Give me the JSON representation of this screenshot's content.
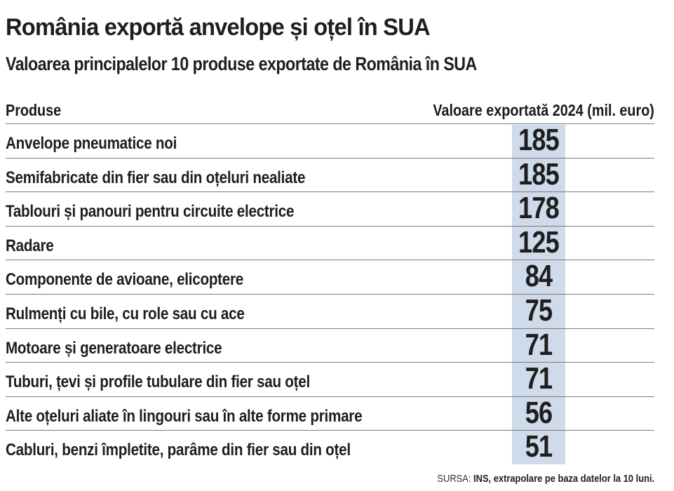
{
  "title": "România exportă anvelope și oțel în SUA",
  "subtitle": "Valoarea principalelor 10 produse exportate de România în SUA",
  "chart_data": {
    "type": "table",
    "columns": [
      "Produse",
      "Valoare exportată 2024 (mil. euro)"
    ],
    "rows": [
      {
        "product": "Anvelope pneumatice noi",
        "value": 185
      },
      {
        "product": "Semifabricate din fier sau din oțeluri nealiate",
        "value": 185
      },
      {
        "product": "Tablouri și panouri pentru circuite electrice",
        "value": 178
      },
      {
        "product": "Radare",
        "value": 125
      },
      {
        "product": "Componente de avioane, elicoptere",
        "value": 84
      },
      {
        "product": "Rulmenți cu bile, cu role sau cu ace",
        "value": 75
      },
      {
        "product": "Motoare și generatoare electrice",
        "value": 71
      },
      {
        "product": "Tuburi, țevi și profile tubulare din fier sau oțel",
        "value": 71
      },
      {
        "product": "Alte oțeluri aliate în lingouri sau în alte forme primare",
        "value": 56
      },
      {
        "product": "Cabluri, benzi împletite, parâme din fier sau din oțel",
        "value": 51
      }
    ],
    "highlight_color": "#cfdbea"
  },
  "source": {
    "prefix": "SURSA:",
    "text": "INS, extrapolare pe baza datelor la 10 luni."
  }
}
